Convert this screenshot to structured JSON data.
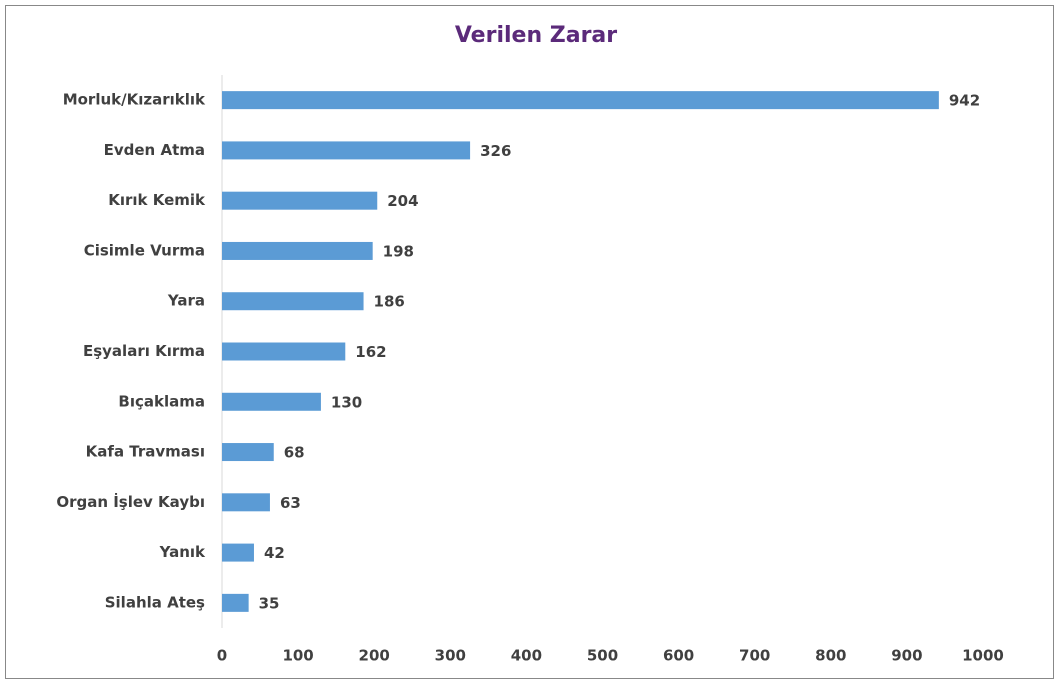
{
  "chart_data": {
    "type": "barh",
    "title": "Verilen Zarar",
    "categories": [
      "Morluk/Kızarıklık",
      "Evden Atma",
      "Kırık Kemik",
      "Cisimle Vurma",
      "Yara",
      "Eşyaları Kırma",
      "Bıçaklama",
      "Kafa Travması",
      "Organ İşlev Kaybı",
      "Yanık",
      "Silahla Ateş"
    ],
    "values": [
      942,
      326,
      204,
      198,
      186,
      162,
      130,
      68,
      63,
      42,
      35
    ],
    "color": "#5b9bd5",
    "xlim": [
      0,
      1000
    ],
    "xticks": [
      0,
      100,
      200,
      300,
      400,
      500,
      600,
      700,
      800,
      900,
      1000
    ],
    "grid": false
  }
}
